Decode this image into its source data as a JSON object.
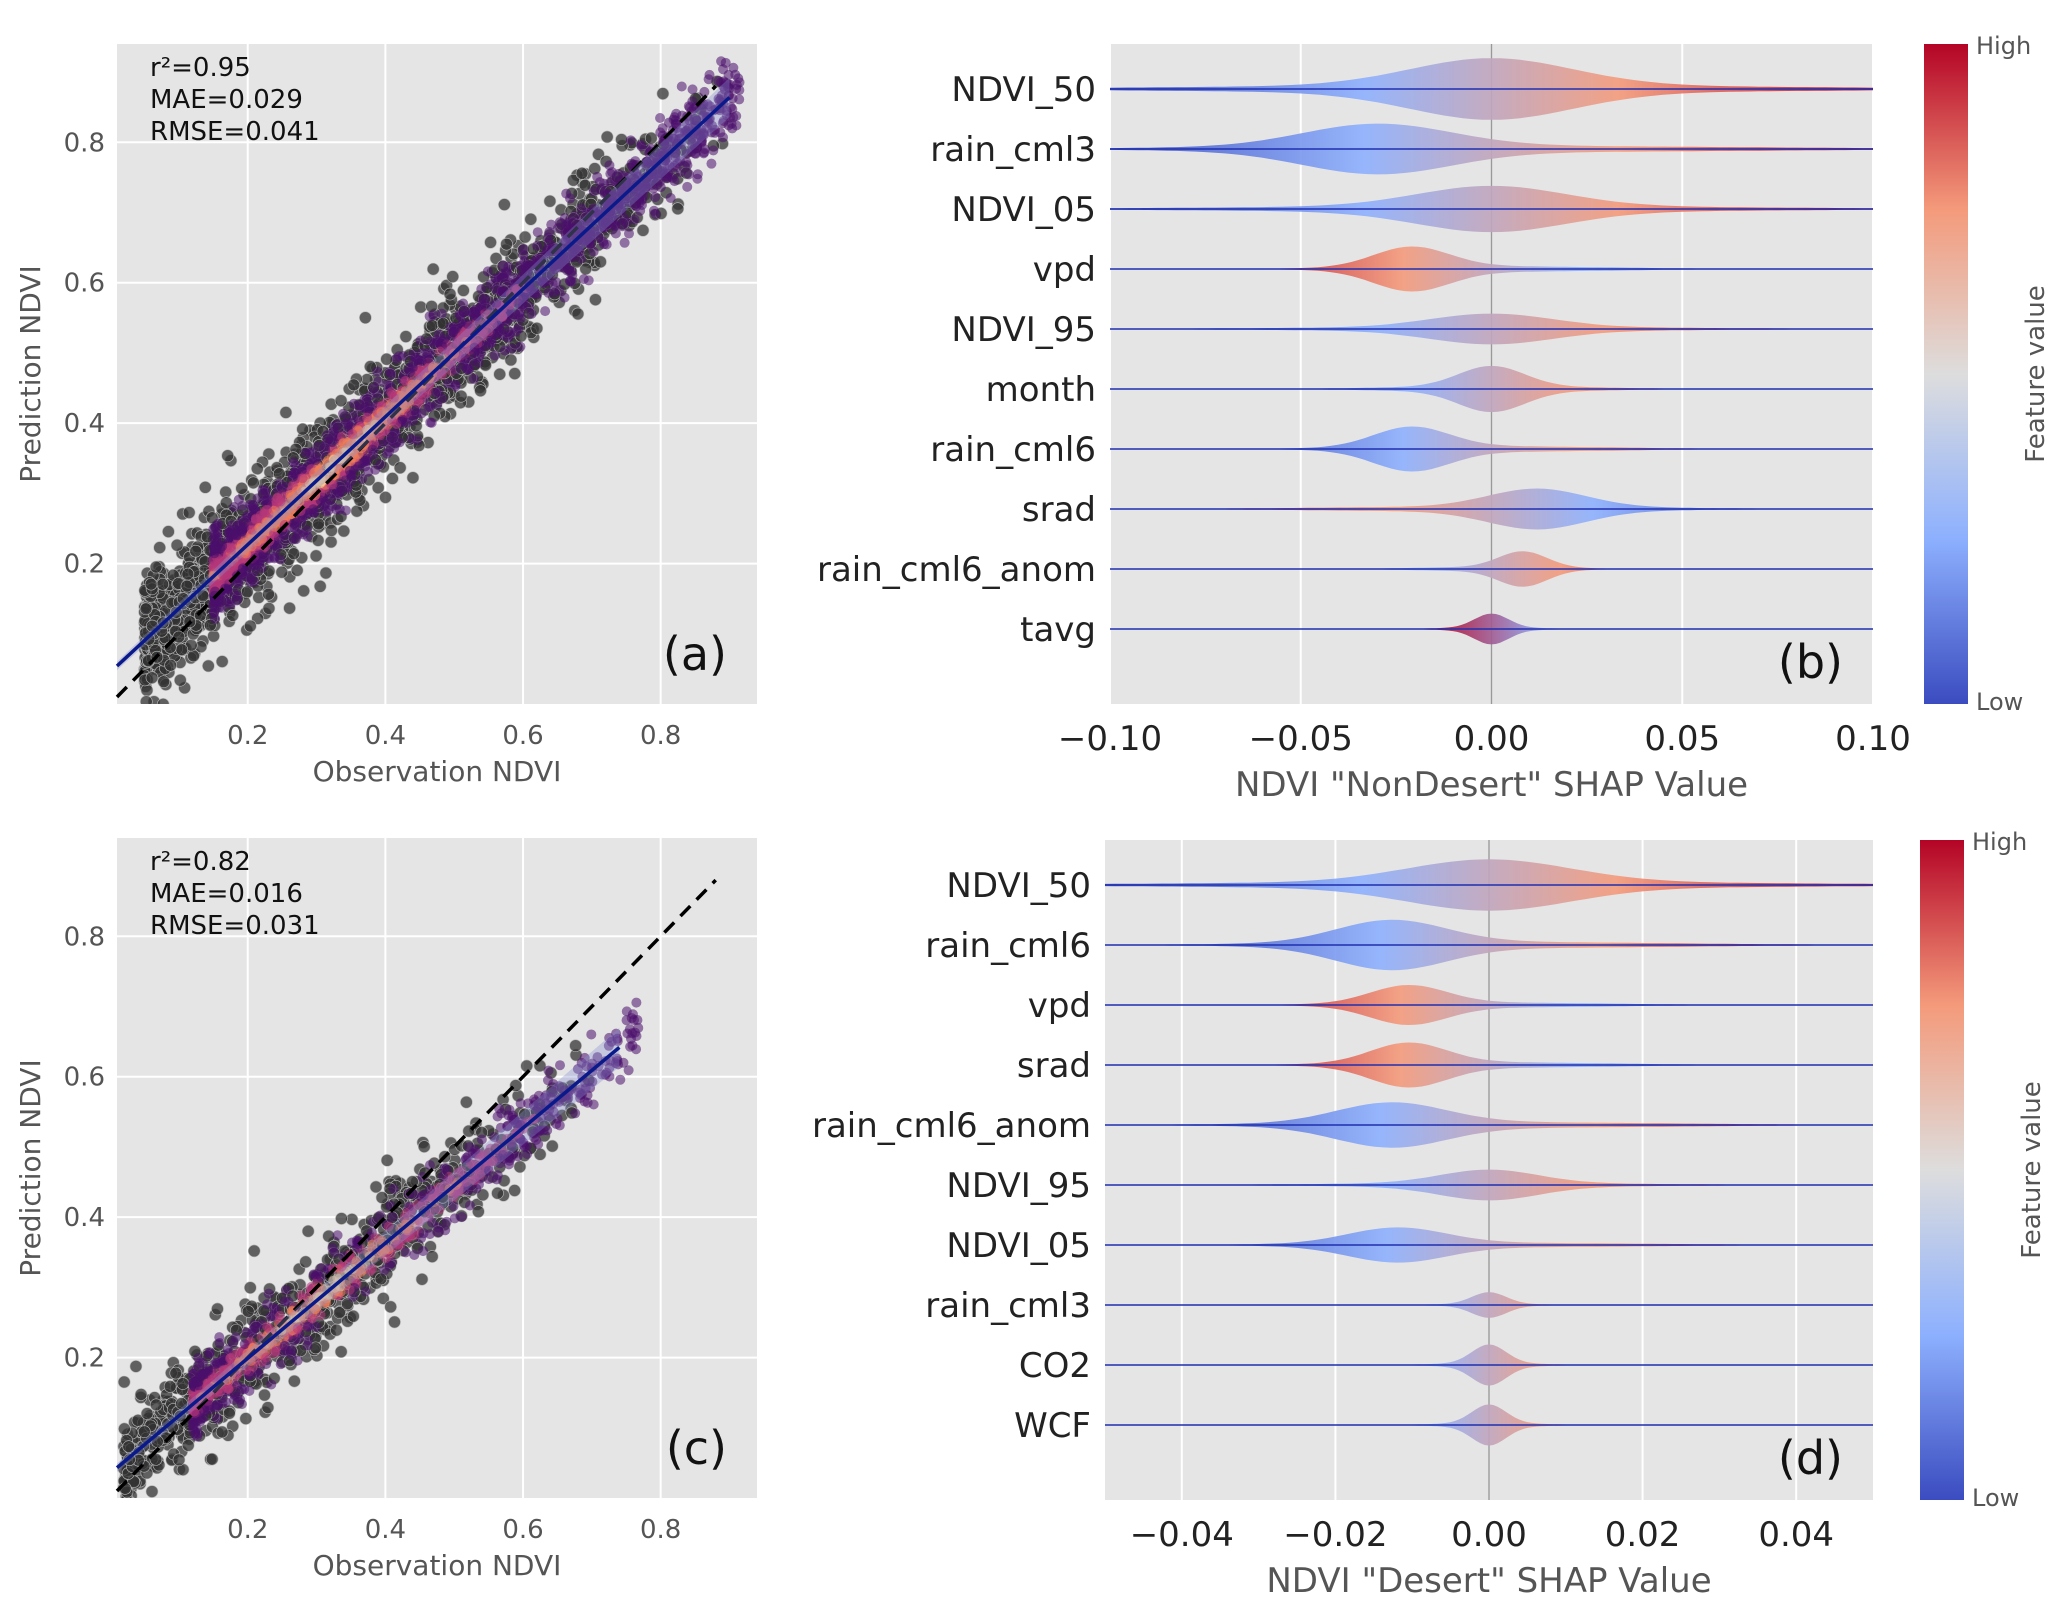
{
  "chart_data": [
    {
      "panel": "(a)",
      "type": "scatter",
      "xlabel": "Observation NDVI",
      "ylabel": "Prediction NDVI",
      "xlim": [
        0.01,
        0.94
      ],
      "ylim": [
        0.0,
        0.94
      ],
      "xticks": [
        "0.2",
        "0.4",
        "0.6",
        "0.8"
      ],
      "yticks": [
        "0.2",
        "0.4",
        "0.6",
        "0.8"
      ],
      "stats": [
        "r²=0.95",
        "MAE=0.029",
        "RMSE=0.041"
      ],
      "grid": true,
      "one_to_one_line": {
        "style": "dashed",
        "color": "#000000"
      },
      "fit_line": {
        "slope": 0.91,
        "intercept": 0.045,
        "color": "#0b1a8a"
      },
      "point_cloud": {
        "x_range": [
          0.05,
          0.9
        ],
        "spread": 0.045,
        "count": 2200,
        "color": "#333333",
        "density_colors": [
          "#4b0f6b",
          "#b5367a",
          "#f07e5a",
          "#fcd89a"
        ]
      }
    },
    {
      "panel": "(b)",
      "type": "violin",
      "xlabel": "NDVI \"NonDesert\" SHAP Value",
      "xlim": [
        -0.1,
        0.1
      ],
      "xticks": [
        "−0.10",
        "−0.05",
        "0.00",
        "0.05",
        "0.10"
      ],
      "features": [
        {
          "name": "NDVI_50",
          "width": 2.2,
          "spread": 1.0,
          "shape": "broad"
        },
        {
          "name": "rain_cml3",
          "width": 1.0,
          "spread": 0.9,
          "shape": "negpeak"
        },
        {
          "name": "NDVI_05",
          "width": 0.9,
          "spread": 0.9,
          "shape": "broad"
        },
        {
          "name": "vpd",
          "width": 0.9,
          "spread": 0.6,
          "shape": "redneg"
        },
        {
          "name": "NDVI_95",
          "width": 0.6,
          "spread": 0.8,
          "shape": "center"
        },
        {
          "name": "month",
          "width": 0.9,
          "spread": 0.55,
          "shape": "center"
        },
        {
          "name": "rain_cml6",
          "width": 0.9,
          "spread": 0.6,
          "shape": "blueneg"
        },
        {
          "name": "srad",
          "width": 0.8,
          "spread": 0.7,
          "shape": "bluepos"
        },
        {
          "name": "rain_cml6_anom",
          "width": 0.7,
          "spread": 0.45,
          "shape": "redpos"
        },
        {
          "name": "tavg",
          "width": 0.6,
          "spread": 0.35,
          "shape": "redcenter"
        }
      ],
      "colorbar": {
        "label": "Feature value",
        "high": "High",
        "low": "Low",
        "colors": [
          "#3b4cc0",
          "#8db0fe",
          "#dddddd",
          "#f49a7b",
          "#b40426"
        ]
      }
    },
    {
      "panel": "(c)",
      "type": "scatter",
      "xlabel": "Observation NDVI",
      "ylabel": "Prediction NDVI",
      "xlim": [
        0.01,
        0.94
      ],
      "ylim": [
        0.0,
        0.94
      ],
      "xticks": [
        "0.2",
        "0.4",
        "0.6",
        "0.8"
      ],
      "yticks": [
        "0.2",
        "0.4",
        "0.6",
        "0.8"
      ],
      "stats": [
        "r²=0.82",
        "MAE=0.016",
        "RMSE=0.031"
      ],
      "grid": true,
      "one_to_one_line": {
        "style": "dashed",
        "color": "#000000"
      },
      "fit_line": {
        "slope": 0.82,
        "intercept": 0.035,
        "color": "#0b1a8a"
      },
      "point_cloud": {
        "x_range": [
          0.02,
          0.74
        ],
        "spread": 0.04,
        "count": 900,
        "color": "#333333",
        "density_colors": [
          "#4b0f6b",
          "#b5367a",
          "#f07e5a",
          "#fcd89a"
        ]
      }
    },
    {
      "panel": "(d)",
      "type": "violin",
      "xlabel": "NDVI \"Desert\" SHAP Value",
      "xlim": [
        -0.05,
        0.05
      ],
      "xticks": [
        "−0.04",
        "−0.02",
        "0.00",
        "0.02",
        "0.04"
      ],
      "features": [
        {
          "name": "NDVI_50",
          "width": 1.0,
          "spread": 1.0,
          "shape": "broad"
        },
        {
          "name": "rain_cml6",
          "width": 1.0,
          "spread": 0.75,
          "shape": "negpeak"
        },
        {
          "name": "vpd",
          "width": 0.8,
          "spread": 0.6,
          "shape": "redneg"
        },
        {
          "name": "srad",
          "width": 0.9,
          "spread": 0.6,
          "shape": "redneg"
        },
        {
          "name": "rain_cml6_anom",
          "width": 0.9,
          "spread": 0.75,
          "shape": "negpeak"
        },
        {
          "name": "NDVI_95",
          "width": 0.6,
          "spread": 0.7,
          "shape": "center"
        },
        {
          "name": "NDVI_05",
          "width": 0.7,
          "spread": 0.7,
          "shape": "negpeak"
        },
        {
          "name": "rain_cml3",
          "width": 0.5,
          "spread": 0.35,
          "shape": "center"
        },
        {
          "name": "CO2",
          "width": 0.8,
          "spread": 0.35,
          "shape": "center"
        },
        {
          "name": "WCF",
          "width": 0.8,
          "spread": 0.35,
          "shape": "center"
        }
      ],
      "colorbar": {
        "label": "Feature value",
        "high": "High",
        "low": "Low",
        "colors": [
          "#3b4cc0",
          "#8db0fe",
          "#dddddd",
          "#f49a7b",
          "#b40426"
        ]
      }
    }
  ]
}
